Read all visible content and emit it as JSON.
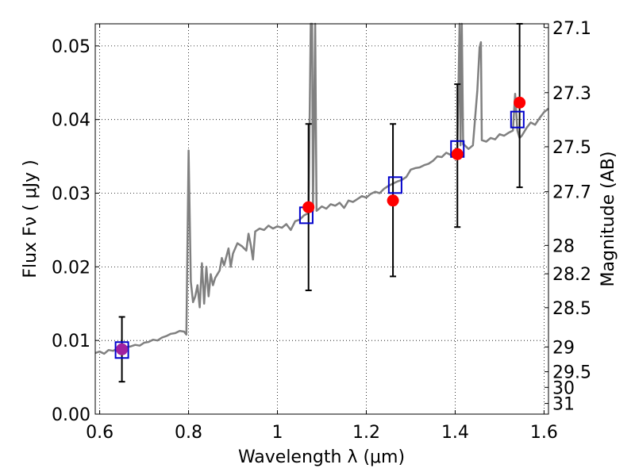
{
  "chart_data": {
    "type": "scatter",
    "xlabel": "Wavelength  λ (μm)",
    "ylabel": "Flux  Fν  ( μJy )",
    "y2label": "Magnitude (AB)",
    "xlim": [
      0.59,
      1.61
    ],
    "ylim": [
      0.0,
      0.053
    ],
    "x_ticks": [
      0.6,
      0.8,
      1.0,
      1.2,
      1.4,
      1.6
    ],
    "x_tick_labels": [
      "0.6",
      "0.8",
      "1",
      "1.2",
      "1.4",
      "1.6"
    ],
    "y_ticks": [
      0.0,
      0.01,
      0.02,
      0.03,
      0.04,
      0.05
    ],
    "y_tick_labels": [
      "0.00",
      "0.01",
      "0.02",
      "0.03",
      "0.04",
      "0.05"
    ],
    "mag_ticks": [
      "27.1",
      "27.3",
      "27.5",
      "27.7",
      "28",
      "28.2",
      "28.5",
      "29",
      "29.5",
      "30",
      "31"
    ],
    "grid": true,
    "colors": {
      "model": "#808080",
      "observed": "#ff0000",
      "model_band": "#0000cc",
      "first_point": "#a020a0",
      "errorbar": "#000000"
    },
    "observed": [
      {
        "x": 0.65,
        "y": 0.0088,
        "err_low": 0.0044,
        "err_high": 0.0132
      },
      {
        "x": 1.07,
        "y": 0.0281,
        "err_low": 0.0168,
        "err_high": 0.0394
      },
      {
        "x": 1.26,
        "y": 0.029,
        "err_low": 0.0187,
        "err_high": 0.0394
      },
      {
        "x": 1.405,
        "y": 0.0353,
        "err_low": 0.0254,
        "err_high": 0.0448
      },
      {
        "x": 1.545,
        "y": 0.0423,
        "err_low": 0.0308,
        "err_high": 0.0532
      }
    ],
    "model_band_flux": [
      {
        "x": 0.65,
        "y": 0.0087
      },
      {
        "x": 1.065,
        "y": 0.027
      },
      {
        "x": 1.265,
        "y": 0.0311
      },
      {
        "x": 1.405,
        "y": 0.036
      },
      {
        "x": 1.54,
        "y": 0.04
      }
    ],
    "model_spectrum": [
      [
        0.59,
        0.0083
      ],
      [
        0.6,
        0.0085
      ],
      [
        0.61,
        0.0082
      ],
      [
        0.62,
        0.0087
      ],
      [
        0.63,
        0.0086
      ],
      [
        0.64,
        0.0089
      ],
      [
        0.65,
        0.0088
      ],
      [
        0.66,
        0.0091
      ],
      [
        0.67,
        0.0092
      ],
      [
        0.68,
        0.0094
      ],
      [
        0.69,
        0.0093
      ],
      [
        0.7,
        0.0097
      ],
      [
        0.71,
        0.0098
      ],
      [
        0.72,
        0.0101
      ],
      [
        0.73,
        0.01
      ],
      [
        0.74,
        0.0104
      ],
      [
        0.75,
        0.0106
      ],
      [
        0.76,
        0.0109
      ],
      [
        0.77,
        0.011
      ],
      [
        0.78,
        0.0113
      ],
      [
        0.79,
        0.0112
      ],
      [
        0.795,
        0.0108
      ],
      [
        0.8,
        0.0358
      ],
      [
        0.805,
        0.018
      ],
      [
        0.81,
        0.0152
      ],
      [
        0.815,
        0.016
      ],
      [
        0.82,
        0.0175
      ],
      [
        0.825,
        0.0145
      ],
      [
        0.83,
        0.0205
      ],
      [
        0.835,
        0.015
      ],
      [
        0.84,
        0.02
      ],
      [
        0.845,
        0.016
      ],
      [
        0.85,
        0.019
      ],
      [
        0.855,
        0.0175
      ],
      [
        0.86,
        0.0185
      ],
      [
        0.87,
        0.0195
      ],
      [
        0.875,
        0.0212
      ],
      [
        0.88,
        0.0202
      ],
      [
        0.89,
        0.0225
      ],
      [
        0.895,
        0.02
      ],
      [
        0.9,
        0.0218
      ],
      [
        0.91,
        0.0232
      ],
      [
        0.92,
        0.0228
      ],
      [
        0.93,
        0.0222
      ],
      [
        0.935,
        0.0245
      ],
      [
        0.94,
        0.023
      ],
      [
        0.945,
        0.021
      ],
      [
        0.95,
        0.0248
      ],
      [
        0.96,
        0.0252
      ],
      [
        0.97,
        0.025
      ],
      [
        0.98,
        0.0256
      ],
      [
        0.99,
        0.0252
      ],
      [
        1.0,
        0.0255
      ],
      [
        1.01,
        0.0253
      ],
      [
        1.02,
        0.0258
      ],
      [
        1.03,
        0.025
      ],
      [
        1.04,
        0.0262
      ],
      [
        1.05,
        0.0264
      ],
      [
        1.06,
        0.027
      ],
      [
        1.07,
        0.0273
      ],
      [
        1.075,
        0.053
      ],
      [
        1.078,
        0.053
      ],
      [
        1.08,
        0.0276
      ],
      [
        1.085,
        0.053
      ],
      [
        1.088,
        0.0276
      ],
      [
        1.1,
        0.0282
      ],
      [
        1.11,
        0.0279
      ],
      [
        1.12,
        0.0285
      ],
      [
        1.13,
        0.0283
      ],
      [
        1.14,
        0.0287
      ],
      [
        1.15,
        0.028
      ],
      [
        1.16,
        0.029
      ],
      [
        1.17,
        0.0288
      ],
      [
        1.18,
        0.0292
      ],
      [
        1.19,
        0.0296
      ],
      [
        1.2,
        0.0294
      ],
      [
        1.21,
        0.0299
      ],
      [
        1.22,
        0.0302
      ],
      [
        1.23,
        0.03
      ],
      [
        1.24,
        0.0306
      ],
      [
        1.25,
        0.031
      ],
      [
        1.26,
        0.0313
      ],
      [
        1.27,
        0.0316
      ],
      [
        1.28,
        0.0318
      ],
      [
        1.29,
        0.0322
      ],
      [
        1.3,
        0.0332
      ],
      [
        1.31,
        0.0334
      ],
      [
        1.32,
        0.0335
      ],
      [
        1.33,
        0.0338
      ],
      [
        1.34,
        0.034
      ],
      [
        1.35,
        0.0344
      ],
      [
        1.36,
        0.035
      ],
      [
        1.37,
        0.0349
      ],
      [
        1.38,
        0.0355
      ],
      [
        1.39,
        0.0352
      ],
      [
        1.4,
        0.0356
      ],
      [
        1.405,
        0.0362
      ],
      [
        1.41,
        0.053
      ],
      [
        1.412,
        0.0365
      ],
      [
        1.415,
        0.053
      ],
      [
        1.418,
        0.0366
      ],
      [
        1.42,
        0.0366
      ],
      [
        1.43,
        0.036
      ],
      [
        1.44,
        0.0365
      ],
      [
        1.45,
        0.044
      ],
      [
        1.455,
        0.0498
      ],
      [
        1.458,
        0.0505
      ],
      [
        1.46,
        0.0372
      ],
      [
        1.47,
        0.037
      ],
      [
        1.48,
        0.0375
      ],
      [
        1.49,
        0.0373
      ],
      [
        1.5,
        0.038
      ],
      [
        1.51,
        0.0378
      ],
      [
        1.52,
        0.0382
      ],
      [
        1.53,
        0.0385
      ],
      [
        1.535,
        0.0435
      ],
      [
        1.54,
        0.0385
      ],
      [
        1.545,
        0.0375
      ],
      [
        1.55,
        0.0378
      ],
      [
        1.56,
        0.0388
      ],
      [
        1.57,
        0.0396
      ],
      [
        1.58,
        0.0393
      ],
      [
        1.59,
        0.0402
      ],
      [
        1.6,
        0.041
      ],
      [
        1.61,
        0.0415
      ]
    ]
  }
}
